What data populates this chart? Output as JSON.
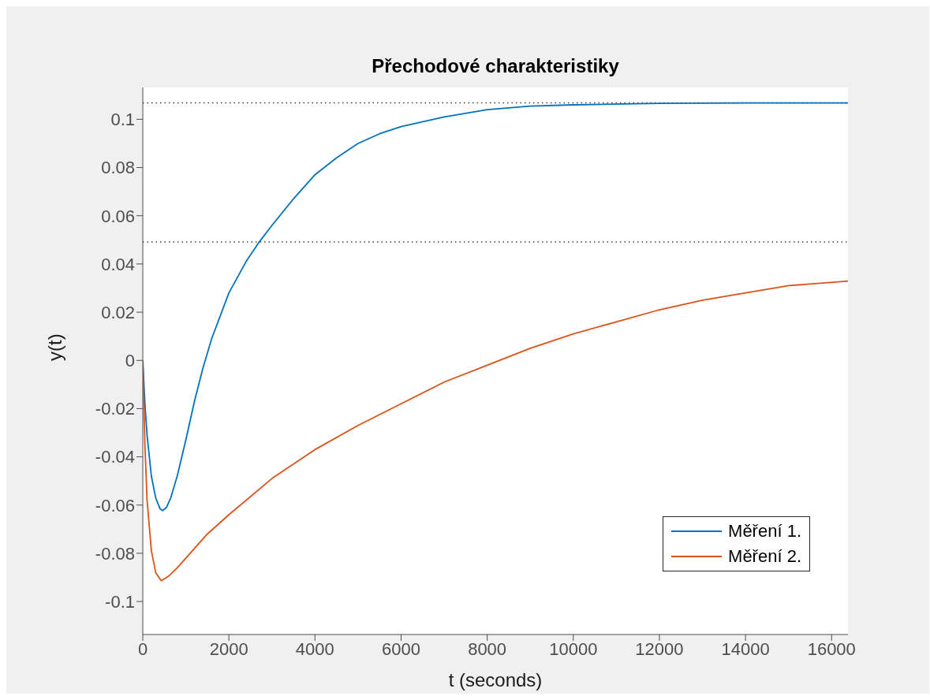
{
  "chart_data": {
    "type": "line",
    "title": "Přechodové charakteristiky",
    "xlabel": "t (seconds)",
    "ylabel": "y(t)",
    "xlim": [
      0,
      16380
    ],
    "xticks": [
      0,
      2000,
      4000,
      6000,
      8000,
      10000,
      12000,
      14000,
      16000
    ],
    "ylim": [
      -0.1137,
      0.1132
    ],
    "yticks": [
      -0.1,
      -0.08,
      -0.06,
      -0.04,
      -0.02,
      0,
      0.02,
      0.04,
      0.06,
      0.08,
      0.1
    ],
    "grid": false,
    "legend": "bottom right",
    "marker": "none",
    "line_style": "solid",
    "ref_lines": [
      {
        "axis": "y",
        "value": 0.1068,
        "color": "#404040",
        "line_style": "dotted"
      },
      {
        "axis": "y",
        "value": 0.0491,
        "color": "#404040",
        "line_style": "dotted"
      }
    ],
    "series": [
      {
        "name": "Měření 1.",
        "color": "#0072bd",
        "x": [
          0,
          50,
          100,
          200,
          300,
          400,
          460,
          550,
          650,
          800,
          1000,
          1200,
          1400,
          1600,
          2000,
          2400,
          2700,
          3000,
          3500,
          4000,
          4500,
          5000,
          5500,
          6000,
          7000,
          8000,
          9000,
          10000,
          12000,
          14000,
          16380
        ],
        "values": [
          0,
          -0.018,
          -0.031,
          -0.048,
          -0.057,
          -0.0615,
          -0.0623,
          -0.061,
          -0.057,
          -0.048,
          -0.033,
          -0.017,
          -0.003,
          0.009,
          0.028,
          0.041,
          0.049,
          0.056,
          0.067,
          0.077,
          0.084,
          0.09,
          0.094,
          0.097,
          0.101,
          0.104,
          0.1055,
          0.106,
          0.1066,
          0.1068,
          0.1068
        ]
      },
      {
        "name": "Měření 2.",
        "color": "#d95319",
        "x": [
          0,
          50,
          100,
          200,
          300,
          430,
          600,
          800,
          1000,
          1500,
          2000,
          3000,
          4000,
          5000,
          6000,
          7000,
          8000,
          9000,
          10000,
          11000,
          12000,
          13000,
          14000,
          15000,
          16380
        ],
        "values": [
          0,
          -0.035,
          -0.058,
          -0.079,
          -0.088,
          -0.0914,
          -0.0895,
          -0.086,
          -0.082,
          -0.072,
          -0.064,
          -0.049,
          -0.037,
          -0.027,
          -0.018,
          -0.009,
          -0.002,
          0.005,
          0.011,
          0.016,
          0.021,
          0.025,
          0.028,
          0.031,
          0.0329
        ]
      }
    ]
  }
}
